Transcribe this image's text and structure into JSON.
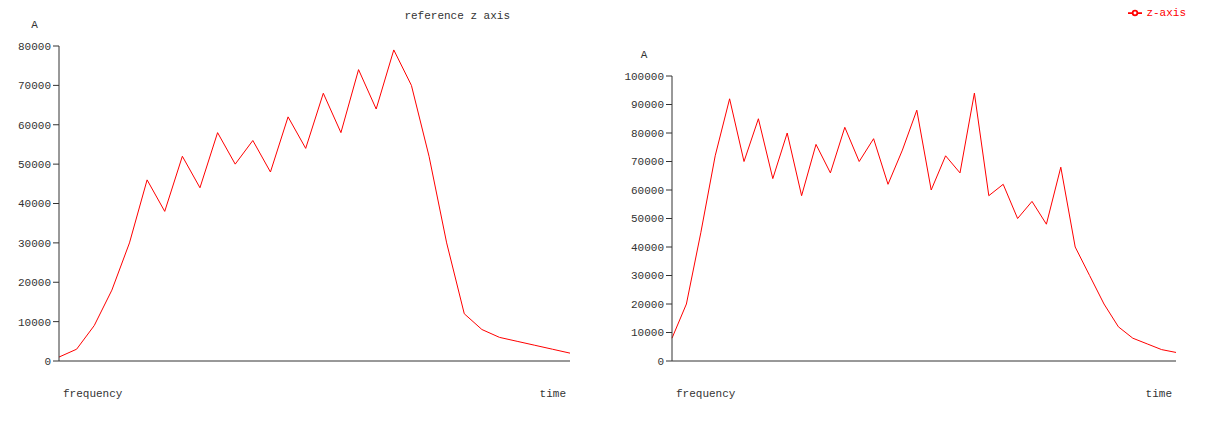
{
  "chart_data": [
    {
      "type": "line",
      "title": "reference z axis",
      "y_label": "A",
      "x_label": "frequency",
      "z_label": "time",
      "tick_labels": "y",
      "grid": false,
      "categories": [
        null,
        null,
        null,
        null,
        null,
        null,
        null,
        null,
        null,
        null,
        null,
        null,
        null,
        null,
        null,
        null,
        null,
        null,
        null,
        null,
        null,
        null,
        null,
        null,
        null,
        null,
        null,
        null,
        null,
        null
      ],
      "series": [
        {
          "name": null,
          "color": "#ff0000",
          "values": [
            1000,
            3000,
            9000,
            18000,
            30000,
            46000,
            38000,
            52000,
            44000,
            58000,
            50000,
            56000,
            48000,
            62000,
            54000,
            68000,
            58000,
            74000,
            64000,
            79000,
            70000,
            52000,
            30000,
            12000,
            8000,
            6000,
            5000,
            4000,
            3000,
            2000
          ]
        }
      ],
      "ylim": [
        0,
        80000
      ],
      "yticks": [
        0,
        10000,
        20000,
        30000,
        40000,
        50000,
        60000,
        70000,
        80000
      ]
    },
    {
      "type": "line",
      "y_label": "A",
      "x_label": "frequency",
      "z_label": "time",
      "tick_labels": "y",
      "grid": false,
      "legend": "top-right",
      "categories": [
        null,
        null,
        null,
        null,
        null,
        null,
        null,
        null,
        null,
        null,
        null,
        null,
        null,
        null,
        null,
        null,
        null,
        null,
        null,
        null,
        null,
        null,
        null,
        null,
        null,
        null,
        null,
        null,
        null,
        null,
        null,
        null,
        null,
        null,
        null,
        null
      ],
      "series": [
        {
          "name": "z-axis",
          "color": "#ff0000",
          "values": [
            8000,
            20000,
            45000,
            72000,
            92000,
            70000,
            85000,
            64000,
            80000,
            58000,
            76000,
            66000,
            82000,
            70000,
            78000,
            62000,
            74000,
            88000,
            60000,
            72000,
            66000,
            94000,
            58000,
            62000,
            50000,
            56000,
            48000,
            68000,
            40000,
            30000,
            20000,
            12000,
            8000,
            6000,
            4000,
            3000
          ]
        }
      ],
      "ylim": [
        0,
        100000
      ],
      "yticks": [
        0,
        10000,
        20000,
        30000,
        40000,
        50000,
        60000,
        70000,
        80000,
        90000,
        100000
      ]
    }
  ]
}
